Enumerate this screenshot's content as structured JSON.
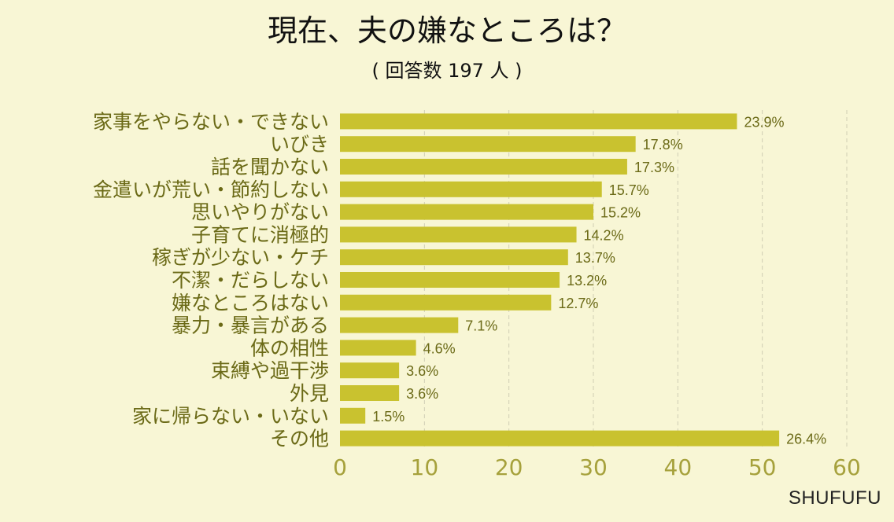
{
  "chart_data": {
    "type": "bar",
    "orientation": "horizontal",
    "title": "現在、夫の嫌なところは？",
    "subtitle": "( 回答数 197 人 )",
    "categories": [
      "家事をやらない・できない",
      "いびき",
      "話を聞かない",
      "金遣いが荒い・節約しない",
      "思いやりがない",
      "子育てに消極的",
      "稼ぎが少ない・ケチ",
      "不潔・だらしない",
      "嫌なところはない",
      "暴力・暴言がある",
      "体の相性",
      "束縛や過干渉",
      "外見",
      "家に帰らない・いない",
      "その他"
    ],
    "values": [
      47,
      35,
      34,
      31,
      30,
      28,
      27,
      26,
      25,
      14,
      9,
      7,
      7,
      3,
      52
    ],
    "data_labels": [
      "23.9%",
      "17.8%",
      "17.3%",
      "15.7%",
      "15.2%",
      "14.2%",
      "13.7%",
      "13.2%",
      "12.7%",
      "7.1%",
      "4.6%",
      "3.6%",
      "3.6%",
      "1.5%",
      "26.4%"
    ],
    "xlim": [
      0,
      60
    ],
    "xticks": [
      "0",
      "10",
      "20",
      "30",
      "40",
      "50",
      "60"
    ],
    "grid": true,
    "colors": {
      "bar": "#c9c22f",
      "category_text": "#6b6a17",
      "tick_text": "#a6a13c",
      "value_text": "#6b6a17",
      "grid": "#cfcdb4",
      "background": "#f8f6d5"
    }
  },
  "brand": "SHUFUFU"
}
